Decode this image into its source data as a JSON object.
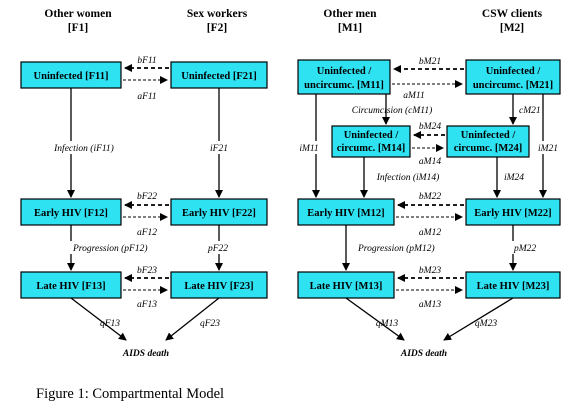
{
  "headers": {
    "other_women": "Other women",
    "other_women_code": "[F1]",
    "sex_workers": "Sex workers",
    "sex_workers_code": "[F2]",
    "other_men": "Other men",
    "other_men_code": "[M1]",
    "csw_clients": "CSW clients",
    "csw_clients_code": "[M2]"
  },
  "boxes": {
    "f11": "Uninfected [F11]",
    "f21": "Uninfected [F21]",
    "f12": "Early HIV [F12]",
    "f22": "Early HIV [F22]",
    "f13": "Late HIV [F13]",
    "f23": "Late HIV [F23]",
    "m11_line1": "Uninfected /",
    "m11_line2": "uncircumc. [M11]",
    "m21_line1": "Uninfected /",
    "m21_line2": "uncircumc. [M21]",
    "m14_line1": "Uninfected /",
    "m14_line2": "circumc. [M14]",
    "m24_line1": "Uninfected /",
    "m24_line2": "circumc. [M24]",
    "m12": "Early HIV [M12]",
    "m22": "Early HIV [M22]",
    "m13": "Late HIV [M13]",
    "m23": "Late HIV [M23]"
  },
  "labels": {
    "bF11": "bF11",
    "aF11": "aF11",
    "infection_iF11": "Infection (iF11)",
    "iF21": "iF21",
    "bF22": "bF22",
    "aF12": "aF12",
    "progression_pF12": "Progression (pF12)",
    "pF22": "pF22",
    "bF23": "bF23",
    "aF13": "aF13",
    "qF13": "qF13",
    "qF23": "qF23",
    "aids_death_f": "AIDS death",
    "bM21": "bM21",
    "aM11": "aM11",
    "circumcision_cM11": "Circumcision (cM11)",
    "cM21": "cM21",
    "bM24": "bM24",
    "aM14": "aM14",
    "iM11": "iM11",
    "iM21": "iM21",
    "infection_iM14": "Infection (iM14)",
    "iM24": "iM24",
    "bM22": "bM22",
    "aM12": "aM12",
    "progression_pM12": "Progression (pM12)",
    "pM22": "pM22",
    "bM23": "bM23",
    "aM13": "aM13",
    "qM13": "qM13",
    "qM23": "qM23",
    "aids_death_m": "AIDS death"
  },
  "caption": "Figure 1: Compartmental Model"
}
